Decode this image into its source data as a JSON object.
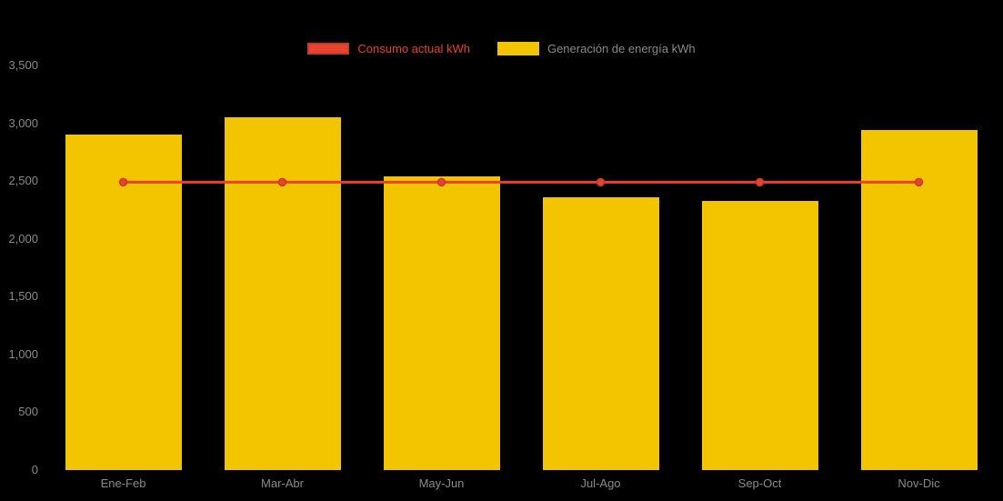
{
  "page": {
    "background_color": "#000000",
    "axis_text_color": "#8a8a8a"
  },
  "legend": {
    "items": [
      {
        "label": "Consumo actual kWh",
        "swatch_type": "line",
        "swatch_fill": "#e8432d",
        "swatch_border": "#c43b27",
        "text_color": "#e8432d"
      },
      {
        "label": "Generación de energía kWh",
        "swatch_type": "bar",
        "swatch_fill": "#f2c500",
        "swatch_border": "#f2c500",
        "text_color": "#8a8a8a"
      }
    ]
  },
  "chart_data": {
    "type": "bar",
    "title": "",
    "xlabel": "",
    "ylabel": "",
    "categories": [
      "Ene-Feb",
      "Mar-Abr",
      "May-Jun",
      "Jul-Ago",
      "Sep-Oct",
      "Nov-Dic"
    ],
    "series": [
      {
        "name": "Consumo actual kWh",
        "type": "line",
        "color": "#e8432d",
        "marker_border": "#c43b27",
        "values": [
          2490,
          2490,
          2490,
          2490,
          2490,
          2490
        ]
      },
      {
        "name": "Generación de energía kWh",
        "type": "bar",
        "color": "#f2c500",
        "values": [
          2900,
          3050,
          2540,
          2360,
          2330,
          2940
        ]
      }
    ],
    "ylim": [
      0,
      3500
    ],
    "ytick_step": 500,
    "ytick_labels": [
      "0",
      "500",
      "1,000",
      "1,500",
      "2,000",
      "2,500",
      "3,000",
      "3,500"
    ],
    "grid": false,
    "legend_position": "top"
  }
}
